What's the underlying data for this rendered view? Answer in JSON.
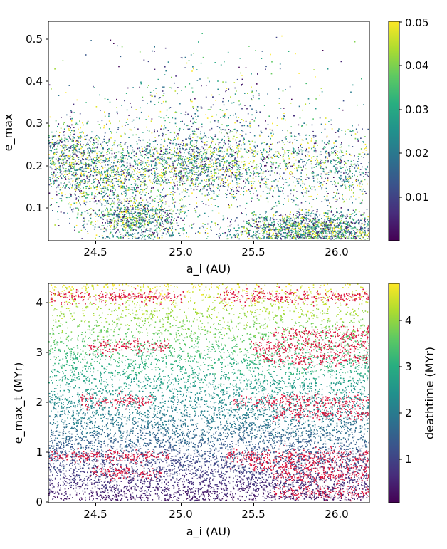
{
  "chart_data": [
    {
      "type": "scatter",
      "title": "",
      "xlabel": "a_i (AU)",
      "ylabel": "e_max",
      "xlim": [
        24.2,
        26.2
      ],
      "ylim": [
        0.02,
        0.54
      ],
      "xticks": [
        24.5,
        25.0,
        25.5,
        26.0
      ],
      "xtick_labels": [
        "24.5",
        "25.0",
        "25.5",
        "26.0"
      ],
      "yticks": [
        0.1,
        0.2,
        0.3,
        0.4,
        0.5
      ],
      "ytick_labels": [
        "0.1",
        "0.2",
        "0.3",
        "0.4",
        "0.5"
      ],
      "colorbar": {
        "label": "",
        "colormap": "viridis",
        "range": [
          0.0,
          0.05
        ],
        "ticks": [
          0.01,
          0.02,
          0.03,
          0.04,
          0.05
        ],
        "tick_labels": [
          "0.01",
          "0.02",
          "0.03",
          "0.04",
          "0.05"
        ]
      },
      "density_clusters": [
        {
          "a_center": 24.3,
          "a_spread": 0.18,
          "e_center": 0.21,
          "e_spread": 0.05,
          "weight": 0.16
        },
        {
          "a_center": 24.6,
          "a_spread": 0.15,
          "e_center": 0.16,
          "e_spread": 0.045,
          "weight": 0.08
        },
        {
          "a_center": 24.75,
          "a_spread": 0.15,
          "e_center": 0.07,
          "e_spread": 0.025,
          "weight": 0.12
        },
        {
          "a_center": 25.15,
          "a_spread": 0.28,
          "e_center": 0.2,
          "e_spread": 0.045,
          "weight": 0.22
        },
        {
          "a_center": 25.85,
          "a_spread": 0.28,
          "e_center": 0.05,
          "e_spread": 0.02,
          "weight": 0.22
        },
        {
          "a_center": 25.95,
          "a_spread": 0.25,
          "e_center": 0.19,
          "e_spread": 0.05,
          "weight": 0.12
        },
        {
          "a_center": 25.2,
          "a_spread": 0.4,
          "e_center": 0.3,
          "e_spread": 0.08,
          "weight": 0.08
        }
      ]
    },
    {
      "type": "scatter",
      "title": "",
      "xlabel": "a_i (AU)",
      "ylabel": "e_max_t (MYr)",
      "xlim": [
        24.2,
        26.2
      ],
      "ylim": [
        0.0,
        4.4
      ],
      "xticks": [
        24.5,
        25.0,
        25.5,
        26.0
      ],
      "xtick_labels": [
        "24.5",
        "25.0",
        "25.5",
        "26.0"
      ],
      "yticks": [
        0,
        1,
        2,
        3,
        4
      ],
      "ytick_labels": [
        "0",
        "1",
        "2",
        "3",
        "4"
      ],
      "colorbar": {
        "label": "deathtime (MYr)",
        "colormap": "viridis",
        "range": [
          0.0,
          4.75
        ],
        "ticks": [
          1,
          2,
          3,
          4
        ],
        "tick_labels": [
          "1",
          "2",
          "3",
          "4"
        ]
      },
      "red_bands": [
        {
          "a_from": 24.2,
          "a_to": 25.05,
          "t": 4.15
        },
        {
          "a_from": 25.25,
          "a_to": 26.2,
          "t": 4.15
        },
        {
          "a_from": 24.45,
          "a_to": 24.95,
          "t": 3.15
        },
        {
          "a_from": 25.45,
          "a_to": 26.2,
          "t": 3.15
        },
        {
          "a_from": 25.5,
          "a_to": 26.2,
          "t": 2.9
        },
        {
          "a_from": 25.6,
          "a_to": 26.2,
          "t": 3.4
        },
        {
          "a_from": 24.4,
          "a_to": 24.85,
          "t": 2.05
        },
        {
          "a_from": 25.35,
          "a_to": 26.2,
          "t": 2.05
        },
        {
          "a_from": 25.6,
          "a_to": 26.2,
          "t": 1.8
        },
        {
          "a_from": 24.2,
          "a_to": 24.95,
          "t": 0.95
        },
        {
          "a_from": 25.3,
          "a_to": 26.2,
          "t": 0.95
        },
        {
          "a_from": 24.45,
          "a_to": 24.9,
          "t": 0.62
        },
        {
          "a_from": 25.45,
          "a_to": 26.2,
          "t": 0.75
        },
        {
          "a_from": 25.6,
          "a_to": 26.2,
          "t": 0.55
        },
        {
          "a_from": 25.6,
          "a_to": 26.2,
          "t": 0.22
        }
      ]
    }
  ],
  "chart_top": {
    "xlabel": "a_i (AU)",
    "ylabel": "e_max",
    "xtick_labels": [
      "24.5",
      "25.0",
      "25.5",
      "26.0"
    ],
    "ytick_labels": [
      "0.1",
      "0.2",
      "0.3",
      "0.4",
      "0.5"
    ],
    "cbar_tick_labels": [
      "0.01",
      "0.02",
      "0.03",
      "0.04",
      "0.05"
    ]
  },
  "chart_bottom": {
    "xlabel": "a_i (AU)",
    "ylabel": "e_max_t (MYr)",
    "xtick_labels": [
      "24.5",
      "25.0",
      "25.5",
      "26.0"
    ],
    "ytick_labels": [
      "0",
      "1",
      "2",
      "3",
      "4"
    ],
    "cbar_tick_labels": [
      "1",
      "2",
      "3",
      "4"
    ],
    "cbar_label": "deathtime (MYr)"
  },
  "colors": {
    "background": "#ffffff",
    "axis": "#000000",
    "red_band": "#dc143c"
  }
}
